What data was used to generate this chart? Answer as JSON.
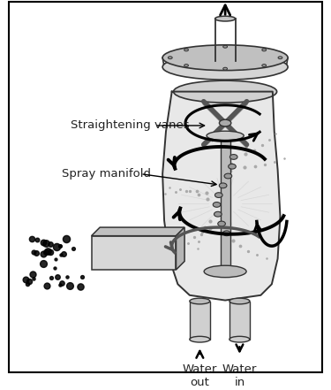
{
  "title": "",
  "background_color": "#ffffff",
  "border_color": "#000000",
  "label_straightening_vanes": "Straightening vanes",
  "label_spray_manifold": "Spray manifold",
  "label_water_out": "Water\nout",
  "label_water_in": "Water\nin",
  "text_color": "#222222",
  "line_color": "#333333",
  "dark_gray": "#555555",
  "light_gray": "#bbbbbb",
  "mid_gray": "#888888",
  "figsize": [
    3.75,
    4.41
  ],
  "dpi": 100
}
